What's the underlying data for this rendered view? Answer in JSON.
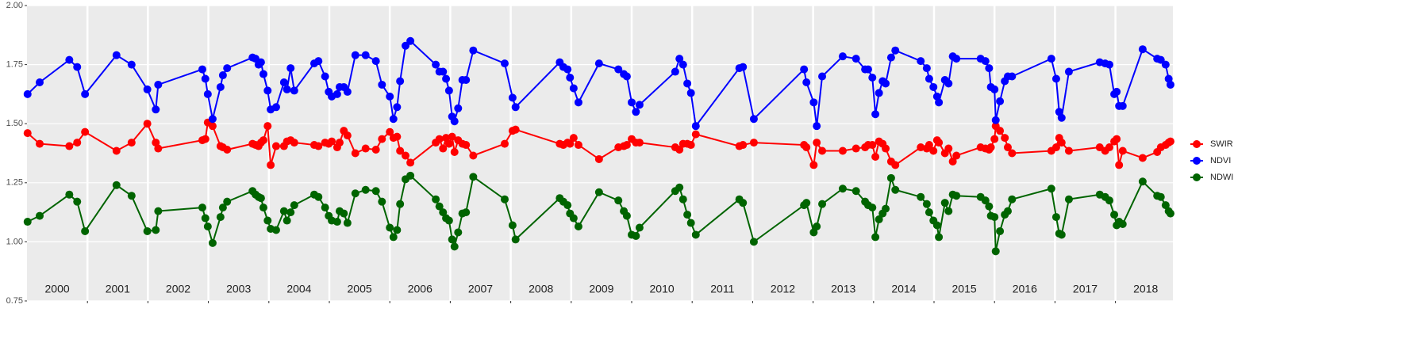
{
  "chart_data": {
    "type": "line",
    "x": [
      2000.01,
      2000.21,
      2000.7,
      2000.83,
      2000.96,
      2001.48,
      2001.73,
      2001.99,
      2002.13,
      2002.17,
      2002.9,
      2002.95,
      2002.99,
      2003.07,
      2003.2,
      2003.24,
      2003.31,
      2003.73,
      2003.78,
      2003.83,
      2003.87,
      2003.91,
      2003.98,
      2004.03,
      2004.12,
      2004.25,
      2004.3,
      2004.36,
      2004.42,
      2004.75,
      2004.82,
      2004.93,
      2004.99,
      2005.04,
      2005.13,
      2005.17,
      2005.24,
      2005.3,
      2005.43,
      2005.6,
      2005.77,
      2005.87,
      2006.0,
      2006.06,
      2006.12,
      2006.17,
      2006.26,
      2006.34,
      2006.76,
      2006.82,
      2006.88,
      2006.93,
      2006.98,
      2007.03,
      2007.07,
      2007.13,
      2007.2,
      2007.26,
      2007.38,
      2007.9,
      2008.03,
      2008.08,
      2008.81,
      2008.87,
      2008.94,
      2008.98,
      2009.04,
      2009.12,
      2009.46,
      2009.78,
      2009.87,
      2009.92,
      2010.0,
      2010.07,
      2010.13,
      2010.72,
      2010.79,
      2010.85,
      2010.92,
      2010.98,
      2011.06,
      2011.78,
      2011.84,
      2012.02,
      2012.85,
      2012.89,
      2013.01,
      2013.06,
      2013.15,
      2013.49,
      2013.71,
      2013.86,
      2013.91,
      2013.98,
      2014.03,
      2014.09,
      2014.15,
      2014.2,
      2014.29,
      2014.36,
      2014.78,
      2014.88,
      2014.92,
      2014.99,
      2015.05,
      2015.08,
      2015.18,
      2015.24,
      2015.31,
      2015.37,
      2015.77,
      2015.85,
      2015.91,
      2015.94,
      2016.0,
      2016.02,
      2016.09,
      2016.17,
      2016.22,
      2016.29,
      2016.94,
      2017.02,
      2017.07,
      2017.11,
      2017.23,
      2017.74,
      2017.83,
      2017.9,
      2017.98,
      2018.02,
      2018.06,
      2018.12,
      2018.45,
      2018.69,
      2018.75,
      2018.83,
      2018.88,
      2018.91
    ],
    "series": [
      {
        "name": "SWIR",
        "color": "#ff0000",
        "values": [
          1.46,
          1.415,
          1.405,
          1.42,
          1.465,
          1.385,
          1.42,
          1.5,
          1.42,
          1.395,
          1.43,
          1.435,
          1.505,
          1.49,
          1.405,
          1.4,
          1.39,
          1.415,
          1.41,
          1.405,
          1.42,
          1.43,
          1.49,
          1.325,
          1.405,
          1.405,
          1.425,
          1.43,
          1.42,
          1.41,
          1.405,
          1.42,
          1.415,
          1.425,
          1.4,
          1.42,
          1.47,
          1.45,
          1.375,
          1.395,
          1.39,
          1.435,
          1.465,
          1.44,
          1.445,
          1.385,
          1.365,
          1.335,
          1.42,
          1.435,
          1.395,
          1.44,
          1.415,
          1.445,
          1.38,
          1.43,
          1.415,
          1.41,
          1.365,
          1.415,
          1.47,
          1.475,
          1.415,
          1.41,
          1.42,
          1.415,
          1.44,
          1.41,
          1.35,
          1.4,
          1.405,
          1.41,
          1.435,
          1.42,
          1.42,
          1.4,
          1.39,
          1.415,
          1.415,
          1.41,
          1.455,
          1.405,
          1.41,
          1.42,
          1.41,
          1.4,
          1.325,
          1.42,
          1.385,
          1.385,
          1.395,
          1.4,
          1.41,
          1.41,
          1.36,
          1.425,
          1.415,
          1.395,
          1.34,
          1.325,
          1.4,
          1.395,
          1.41,
          1.385,
          1.43,
          1.42,
          1.375,
          1.395,
          1.34,
          1.365,
          1.4,
          1.395,
          1.39,
          1.4,
          1.435,
          1.49,
          1.47,
          1.44,
          1.4,
          1.375,
          1.385,
          1.4,
          1.44,
          1.42,
          1.385,
          1.4,
          1.385,
          1.4,
          1.425,
          1.435,
          1.325,
          1.385,
          1.355,
          1.38,
          1.4,
          1.41,
          1.42,
          1.425
        ]
      },
      {
        "name": "NDVI",
        "color": "#0000ff",
        "values": [
          1.625,
          1.675,
          1.77,
          1.74,
          1.625,
          1.79,
          1.75,
          1.645,
          1.56,
          1.665,
          1.73,
          1.69,
          1.625,
          1.52,
          1.655,
          1.705,
          1.735,
          1.78,
          1.775,
          1.75,
          1.76,
          1.71,
          1.64,
          1.56,
          1.57,
          1.675,
          1.645,
          1.735,
          1.64,
          1.755,
          1.765,
          1.7,
          1.635,
          1.615,
          1.625,
          1.655,
          1.655,
          1.635,
          1.79,
          1.79,
          1.765,
          1.665,
          1.615,
          1.52,
          1.57,
          1.68,
          1.83,
          1.85,
          1.75,
          1.72,
          1.72,
          1.69,
          1.64,
          1.53,
          1.51,
          1.565,
          1.685,
          1.685,
          1.81,
          1.755,
          1.61,
          1.57,
          1.76,
          1.74,
          1.73,
          1.695,
          1.65,
          1.59,
          1.755,
          1.73,
          1.71,
          1.7,
          1.59,
          1.55,
          1.58,
          1.72,
          1.775,
          1.75,
          1.67,
          1.63,
          1.49,
          1.735,
          1.74,
          1.52,
          1.73,
          1.675,
          1.59,
          1.49,
          1.7,
          1.785,
          1.775,
          1.73,
          1.73,
          1.695,
          1.54,
          1.63,
          1.68,
          1.67,
          1.78,
          1.81,
          1.765,
          1.735,
          1.69,
          1.655,
          1.615,
          1.59,
          1.685,
          1.67,
          1.785,
          1.775,
          1.775,
          1.765,
          1.735,
          1.655,
          1.645,
          1.515,
          1.595,
          1.68,
          1.7,
          1.7,
          1.775,
          1.69,
          1.55,
          1.525,
          1.72,
          1.76,
          1.755,
          1.75,
          1.625,
          1.635,
          1.575,
          1.575,
          1.815,
          1.775,
          1.77,
          1.75,
          1.69,
          1.665
        ]
      },
      {
        "name": "NDWI",
        "color": "#006400",
        "values": [
          1.085,
          1.11,
          1.2,
          1.17,
          1.045,
          1.24,
          1.195,
          1.045,
          1.05,
          1.13,
          1.145,
          1.1,
          1.065,
          0.995,
          1.105,
          1.145,
          1.17,
          1.215,
          1.2,
          1.19,
          1.185,
          1.145,
          1.09,
          1.055,
          1.05,
          1.13,
          1.09,
          1.125,
          1.155,
          1.2,
          1.19,
          1.145,
          1.11,
          1.09,
          1.085,
          1.13,
          1.12,
          1.08,
          1.205,
          1.22,
          1.215,
          1.17,
          1.06,
          1.02,
          1.05,
          1.16,
          1.265,
          1.28,
          1.18,
          1.15,
          1.125,
          1.1,
          1.09,
          1.01,
          0.98,
          1.04,
          1.12,
          1.125,
          1.275,
          1.18,
          1.07,
          1.01,
          1.185,
          1.17,
          1.155,
          1.12,
          1.1,
          1.065,
          1.21,
          1.175,
          1.13,
          1.11,
          1.03,
          1.025,
          1.06,
          1.215,
          1.23,
          1.18,
          1.115,
          1.08,
          1.03,
          1.18,
          1.165,
          1.0,
          1.155,
          1.165,
          1.04,
          1.065,
          1.16,
          1.225,
          1.215,
          1.17,
          1.155,
          1.145,
          1.02,
          1.095,
          1.12,
          1.14,
          1.27,
          1.22,
          1.19,
          1.16,
          1.125,
          1.09,
          1.07,
          1.02,
          1.165,
          1.13,
          1.2,
          1.195,
          1.19,
          1.175,
          1.15,
          1.11,
          1.105,
          0.96,
          1.045,
          1.115,
          1.13,
          1.18,
          1.225,
          1.105,
          1.035,
          1.03,
          1.18,
          1.2,
          1.19,
          1.175,
          1.115,
          1.07,
          1.085,
          1.075,
          1.255,
          1.195,
          1.19,
          1.155,
          1.13,
          1.12
        ]
      }
    ],
    "xlim": [
      2000,
      2018.95
    ],
    "ylim": [
      0.75,
      2.0
    ],
    "yticks": [
      0.75,
      {
        "value": 1.0,
        "label": "1.00"
      },
      1.25,
      {
        "value": 1.5,
        "label": "1.50"
      },
      1.75,
      {
        "value": 2.0,
        "label": "2.00"
      }
    ],
    "year_labels": [
      2000,
      2001,
      2002,
      2003,
      2004,
      2005,
      2006,
      2007,
      2008,
      2009,
      2010,
      2011,
      2012,
      2013,
      2014,
      2015,
      2016,
      2017,
      2018
    ],
    "grid": true,
    "legend": "right"
  }
}
